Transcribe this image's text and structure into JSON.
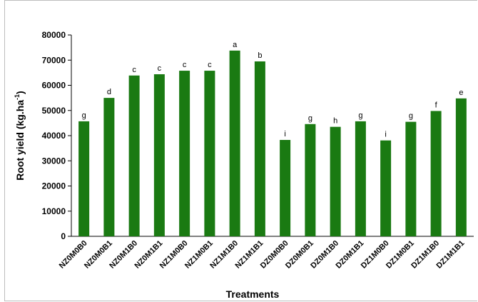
{
  "chart_data": {
    "type": "bar",
    "categories": [
      "NZ0M0B0",
      "NZ0M0B1",
      "NZ0M1B0",
      "NZ0M1B1",
      "NZ1M0B0",
      "NZ1M0B1",
      "NZ1M1B0",
      "NZ1M1B1",
      "DZ0M0B0",
      "DZ0M0B1",
      "DZ0M1B0",
      "DZ0M1B1",
      "DZ1M0B0",
      "DZ1M0B1",
      "DZ1M1B0",
      "DZ1M1B1"
    ],
    "values": [
      45700,
      55000,
      63900,
      64400,
      65800,
      65800,
      73800,
      69500,
      38300,
      44600,
      43500,
      45700,
      38100,
      45500,
      49800,
      54800
    ],
    "significance_letters": [
      "g",
      "d",
      "c",
      "c",
      "c",
      "c",
      "a",
      "b",
      "i",
      "g",
      "h",
      "g",
      "i",
      "g",
      "f",
      "e"
    ],
    "xlabel": "Treatments",
    "ylabel": "Root yield (kg.ha",
    "ylabel_superscript": "-1",
    "ylabel_suffix": ")",
    "ylim": [
      0,
      80000
    ],
    "yticks": [
      "0",
      "10000",
      "20000",
      "30000",
      "40000",
      "50000",
      "60000",
      "70000",
      "80000"
    ],
    "grid": false,
    "legend": "none",
    "bar_color": "#1a7a12"
  }
}
